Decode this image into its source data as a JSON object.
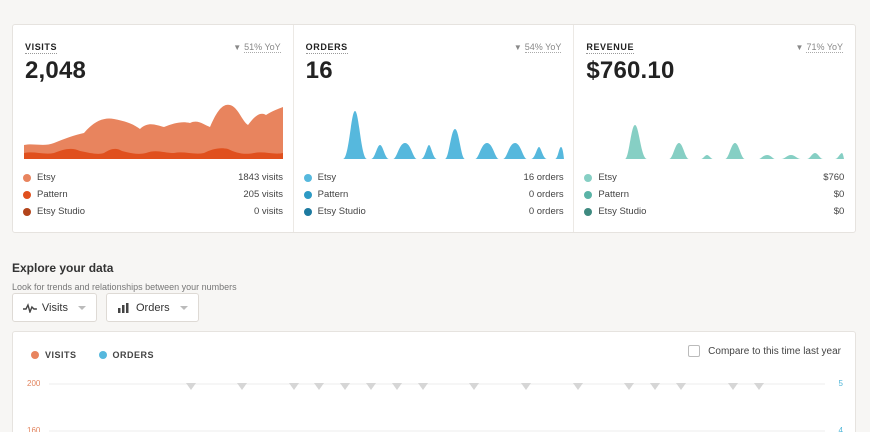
{
  "stats": [
    {
      "label": "VISITS",
      "yoy": "51% YoY",
      "value": "2,048",
      "legend": [
        {
          "name": "Etsy",
          "value": "1843 visits",
          "color": "#e8845e"
        },
        {
          "name": "Pattern",
          "value": "205 visits",
          "color": "#e0501e"
        },
        {
          "name": "Etsy Studio",
          "value": "0 visits",
          "color": "#b2441a"
        }
      ]
    },
    {
      "label": "ORDERS",
      "yoy": "54% YoY",
      "value": "16",
      "legend": [
        {
          "name": "Etsy",
          "value": "16 orders",
          "color": "#56b8dd"
        },
        {
          "name": "Pattern",
          "value": "0 orders",
          "color": "#2d9ac4"
        },
        {
          "name": "Etsy Studio",
          "value": "0 orders",
          "color": "#1d7aa0"
        }
      ]
    },
    {
      "label": "REVENUE",
      "yoy": "71% YoY",
      "value": "$760.10",
      "legend": [
        {
          "name": "Etsy",
          "value": "$760",
          "color": "#86cfc4"
        },
        {
          "name": "Pattern",
          "value": "$0",
          "color": "#5ab3a6"
        },
        {
          "name": "Etsy Studio",
          "value": "$0",
          "color": "#3f8a80"
        }
      ]
    }
  ],
  "explore": {
    "title": "Explore your data",
    "subtitle": "Look for trends and relationships between your numbers",
    "dropdown_left": "Visits",
    "dropdown_right": "Orders",
    "series_visits": "VISITS",
    "series_orders": "ORDERS",
    "compare_label": "Compare to this time last year",
    "left_axis": [
      "200",
      "160"
    ],
    "right_axis": [
      "5",
      "4"
    ]
  },
  "colors": {
    "visits": "#e8845e",
    "orders": "#56b8dd",
    "revenue": "#86cfc4"
  }
}
